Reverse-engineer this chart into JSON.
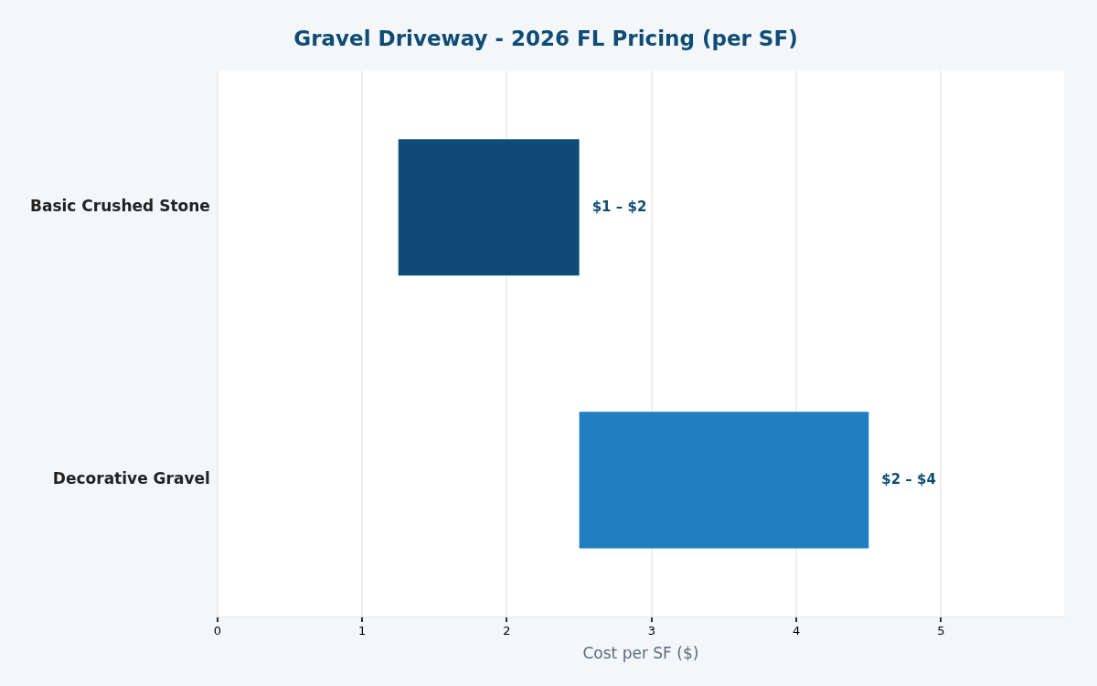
{
  "chart_data": {
    "type": "bar",
    "orientation": "horizontal",
    "title": "Gravel Driveway - 2026 FL Pricing (per SF)",
    "xlabel": "Cost per SF ($)",
    "categories": [
      "Basic Crushed Stone",
      "Decorative Gravel"
    ],
    "base": [
      1.25,
      2.5
    ],
    "values": [
      1.25,
      2.0
    ],
    "colors": [
      "#0f4c75",
      "#1f7fc1"
    ],
    "value_labels": [
      "$1 – $2",
      "$2 – $4"
    ],
    "xlim": [
      0,
      5.85
    ],
    "xticks": [
      0,
      1,
      2,
      3,
      4,
      5
    ],
    "grid": "x",
    "legend": false
  }
}
